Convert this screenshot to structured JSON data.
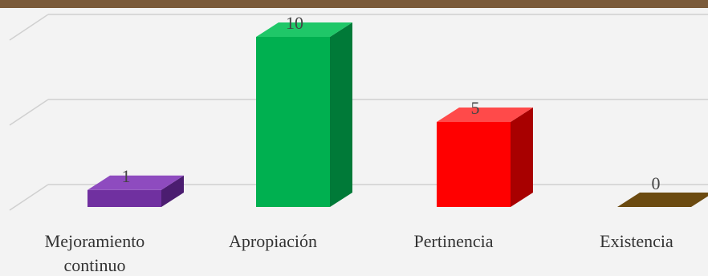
{
  "chart_data": {
    "type": "bar",
    "title": "",
    "xlabel": "",
    "ylabel": "",
    "categories": [
      [
        "Mejoramiento",
        "continuo"
      ],
      [
        "Apropiación"
      ],
      [
        "Pertinencia"
      ],
      [
        "Existencia"
      ]
    ],
    "values": [
      1,
      10,
      5,
      0
    ],
    "data_labels": [
      "1",
      "10",
      "5",
      "0"
    ],
    "ylim": [
      0,
      10
    ],
    "grid": true,
    "legend": "none",
    "three_d": true,
    "colors": [
      {
        "front": "#7030a0",
        "side": "#4b1d70",
        "top": "#8e4bbf"
      },
      {
        "front": "#00b050",
        "side": "#007a38",
        "top": "#1fc768"
      },
      {
        "front": "#ff0000",
        "side": "#a80000",
        "top": "#ff4a4a"
      },
      {
        "front": "#6b4a10",
        "side": "#4a3208",
        "top": "#7a5814"
      }
    ],
    "gridline_color": "#d0d0d0",
    "top_bar_color": "#7a5a3a"
  }
}
